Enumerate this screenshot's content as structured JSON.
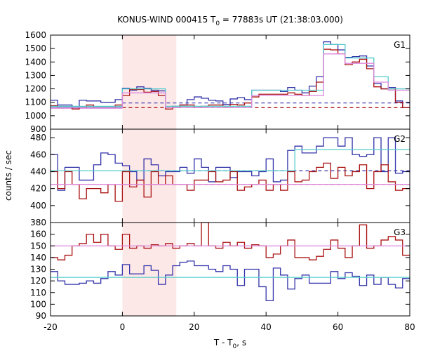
{
  "chart_data": {
    "type": "line",
    "title_prefix": "KONUS-WIND 000415 T",
    "title_sub": "0",
    "title_suffix": " = 77883s UT (21:38:03.000)",
    "xlabel_prefix": "T - T",
    "xlabel_sub": "0",
    "xlabel_suffix": ", s",
    "ylabel": "counts / sec",
    "xlim": [
      -20,
      80
    ],
    "x_ticks": [
      "-20",
      "0",
      "20",
      "40",
      "60",
      "80"
    ],
    "highlight_interval": [
      0,
      15
    ],
    "bin_edges": [
      -20,
      -18,
      -16,
      -14,
      -12,
      -10,
      -8,
      -6,
      -4,
      -2,
      0,
      2,
      4,
      6,
      8,
      10,
      12,
      14,
      16,
      18,
      20,
      22,
      24,
      26,
      28,
      30,
      32,
      34,
      36,
      38,
      40,
      42,
      44,
      46,
      48,
      50,
      52,
      54,
      56,
      58,
      60,
      62,
      64,
      66,
      68,
      70,
      72,
      74,
      76,
      78,
      80
    ],
    "panels": [
      {
        "label": "G1",
        "ylim": [
          900,
          1600
        ],
        "y_ticks": [
          "900",
          "1000",
          "1100",
          "1200",
          "1300",
          "1400",
          "1500",
          "1600"
        ],
        "series": [
          {
            "color": "#3333aa",
            "style": "step",
            "values": [
              1115,
              1080,
              1080,
              1060,
              1115,
              1110,
              1110,
              1100,
              1100,
              1120,
              1205,
              1190,
              1215,
              1205,
              1190,
              1185,
              1060,
              1070,
              1080,
              1120,
              1140,
              1130,
              1115,
              1110,
              1085,
              1125,
              1135,
              1120,
              1190,
              1190,
              1190,
              1190,
              1180,
              1210,
              1190,
              1170,
              1220,
              1290,
              1550,
              1530,
              1490,
              1435,
              1440,
              1445,
              1370,
              1240,
              1200,
              1210,
              1110,
              1060
            ]
          },
          {
            "color": "#aa1111",
            "style": "step",
            "values": [
              1075,
              1060,
              1060,
              1050,
              1060,
              1080,
              1060,
              1060,
              1060,
              1080,
              1150,
              1195,
              1195,
              1175,
              1180,
              1150,
              1050,
              1060,
              1080,
              1080,
              1060,
              1070,
              1080,
              1080,
              1070,
              1085,
              1080,
              1095,
              1140,
              1160,
              1160,
              1160,
              1160,
              1170,
              1160,
              1150,
              1180,
              1250,
              1495,
              1490,
              1460,
              1380,
              1400,
              1420,
              1350,
              1215,
              1200,
              1200,
              1100,
              1060
            ]
          },
          {
            "color": "#55cccc",
            "style": "step",
            "values": [
              1070,
              1070,
              1070,
              1070,
              1070,
              1070,
              1070,
              1070,
              1070,
              1070,
              1200,
              1200,
              1200,
              1200,
              1200,
              1200,
              1070,
              1070,
              1070,
              1070,
              1070,
              1070,
              1070,
              1070,
              1070,
              1070,
              1070,
              1070,
              1190,
              1190,
              1190,
              1190,
              1190,
              1190,
              1190,
              1190,
              1190,
              1190,
              1530,
              1530,
              1530,
              1430,
              1430,
              1430,
              1430,
              1290,
              1290,
              1200,
              1200,
              1200
            ]
          },
          {
            "color": "#dd88dd",
            "style": "step",
            "values": [
              1060,
              1060,
              1060,
              1060,
              1060,
              1060,
              1060,
              1060,
              1060,
              1060,
              1170,
              1170,
              1170,
              1170,
              1170,
              1170,
              1060,
              1060,
              1060,
              1060,
              1060,
              1060,
              1060,
              1060,
              1060,
              1060,
              1060,
              1060,
              1150,
              1150,
              1150,
              1150,
              1150,
              1150,
              1150,
              1150,
              1150,
              1150,
              1460,
              1460,
              1460,
              1390,
              1390,
              1390,
              1390,
              1250,
              1250,
              1190,
              1190,
              1190
            ]
          }
        ],
        "bg_lines": [
          {
            "color": "#3333aa",
            "value": 1095,
            "x_from": 0,
            "x_to": 80,
            "dashed": true
          },
          {
            "color": "#aa1111",
            "value": 1060,
            "x_from": 0,
            "x_to": 80,
            "dashed": true
          },
          {
            "color": "#55cccc",
            "value": 1065,
            "x_from": -20,
            "x_to": 0,
            "dashed": false
          },
          {
            "color": "#dd88dd",
            "value": 1055,
            "x_from": -20,
            "x_to": 0,
            "dashed": false
          }
        ]
      },
      {
        "label": "G2",
        "ylim": [
          380,
          490
        ],
        "y_ticks": [
          "380",
          "400",
          "420",
          "440",
          "460",
          "480"
        ],
        "series": [
          {
            "color": "#3333aa",
            "style": "step",
            "values": [
              460,
              418,
              445,
              445,
              430,
              430,
              448,
              462,
              460,
              450,
              447,
              440,
              430,
              455,
              448,
              435,
              440,
              440,
              445,
              438,
              455,
              445,
              428,
              445,
              445,
              433,
              440,
              440,
              435,
              440,
              455,
              428,
              430,
              465,
              470,
              462,
              462,
              470,
              480,
              480,
              470,
              480,
              460,
              458,
              460,
              480,
              440,
              480,
              438,
              440
            ]
          },
          {
            "color": "#aa1111",
            "style": "step",
            "values": [
              440,
              420,
              440,
              425,
              408,
              420,
              420,
              415,
              425,
              405,
              440,
              422,
              430,
              410,
              440,
              425,
              435,
              425,
              425,
              418,
              430,
              430,
              440,
              428,
              430,
              440,
              418,
              422,
              425,
              430,
              418,
              425,
              418,
              440,
              428,
              430,
              440,
              445,
              450,
              432,
              445,
              435,
              440,
              448,
              420,
              440,
              448,
              428,
              418,
              420
            ]
          },
          {
            "color": "#55cccc",
            "style": "step",
            "values": [
              441,
              441,
              441,
              441,
              441,
              441,
              441,
              441,
              441,
              441,
              441,
              441,
              441,
              441,
              441,
              441,
              441,
              441,
              441,
              441,
              441,
              441,
              441,
              441,
              441,
              441,
              441,
              441,
              441,
              441,
              441,
              441,
              441,
              441,
              466,
              466,
              466,
              466,
              466,
              466,
              466,
              466,
              466,
              466,
              466,
              466,
              466,
              466,
              466,
              466
            ]
          },
          {
            "color": "#dd88dd",
            "style": "step",
            "values": [
              425,
              425,
              425,
              425,
              425,
              425,
              425,
              425,
              425,
              425,
              425,
              425,
              425,
              425,
              425,
              425,
              425,
              425,
              425,
              425,
              425,
              425,
              425,
              425,
              425,
              425,
              425,
              425,
              425,
              425,
              425,
              425,
              425,
              425,
              425,
              425,
              425,
              425,
              425,
              425,
              425,
              425,
              425,
              425,
              425,
              425,
              425,
              425,
              425,
              425
            ]
          }
        ],
        "bg_lines": [
          {
            "color": "#3333aa",
            "value": 441,
            "x_from": 0,
            "x_to": 80,
            "dashed": true
          },
          {
            "color": "#aa1111",
            "value": 425,
            "x_from": 0,
            "x_to": 80,
            "dashed": true
          }
        ]
      },
      {
        "label": "G3",
        "ylim": [
          90,
          170
        ],
        "y_ticks": [
          "90",
          "100",
          "110",
          "120",
          "130",
          "140",
          "150",
          "160"
        ],
        "series": [
          {
            "color": "#aa1111",
            "style": "step",
            "values": [
              140,
              138,
              142,
              150,
              152,
              160,
              153,
              160,
              150,
              147,
              160,
              148,
              150,
              148,
              151,
              150,
              152,
              148,
              150,
              152,
              150,
              170,
              150,
              148,
              153,
              150,
              153,
              148,
              151,
              150,
              140,
              143,
              150,
              155,
              140,
              140,
              138,
              141,
              147,
              155,
              148,
              140,
              150,
              168,
              148,
              150,
              155,
              158,
              155,
              142
            ]
          },
          {
            "color": "#3333aa",
            "style": "step",
            "values": [
              128,
              120,
              117,
              117,
              118,
              120,
              118,
              122,
              128,
              125,
              134,
              126,
              126,
              133,
              129,
              117,
              125,
              133,
              136,
              137,
              133,
              133,
              130,
              128,
              133,
              130,
              116,
              130,
              130,
              115,
              103,
              131,
              125,
              113,
              122,
              125,
              118,
              118,
              118,
              128,
              122,
              127,
              124,
              116,
              125,
              117,
              123,
              117,
              114,
              122
            ]
          },
          {
            "color": "#55cccc",
            "style": "step",
            "values": [
              123,
              123,
              123,
              123,
              123,
              123,
              123,
              123,
              123,
              123,
              123,
              123,
              123,
              123,
              123,
              123,
              123,
              123,
              123,
              123,
              123,
              123,
              123,
              123,
              123,
              123,
              123,
              123,
              123,
              123,
              123,
              123,
              123,
              123,
              123,
              123,
              123,
              123,
              123,
              123,
              123,
              123,
              123,
              123,
              123,
              123,
              123,
              123,
              123,
              123
            ]
          },
          {
            "color": "#dd88dd",
            "style": "step",
            "values": [
              150,
              150,
              150,
              150,
              150,
              150,
              150,
              150,
              150,
              150,
              150,
              150,
              150,
              150,
              150,
              150,
              150,
              150,
              150,
              150,
              150,
              150,
              150,
              150,
              150,
              150,
              150,
              150,
              150,
              150,
              150,
              150,
              150,
              150,
              150,
              150,
              150,
              150,
              150,
              150,
              150,
              150,
              150,
              150,
              150,
              150,
              150,
              150,
              150,
              150
            ]
          }
        ],
        "bg_lines": []
      }
    ]
  }
}
